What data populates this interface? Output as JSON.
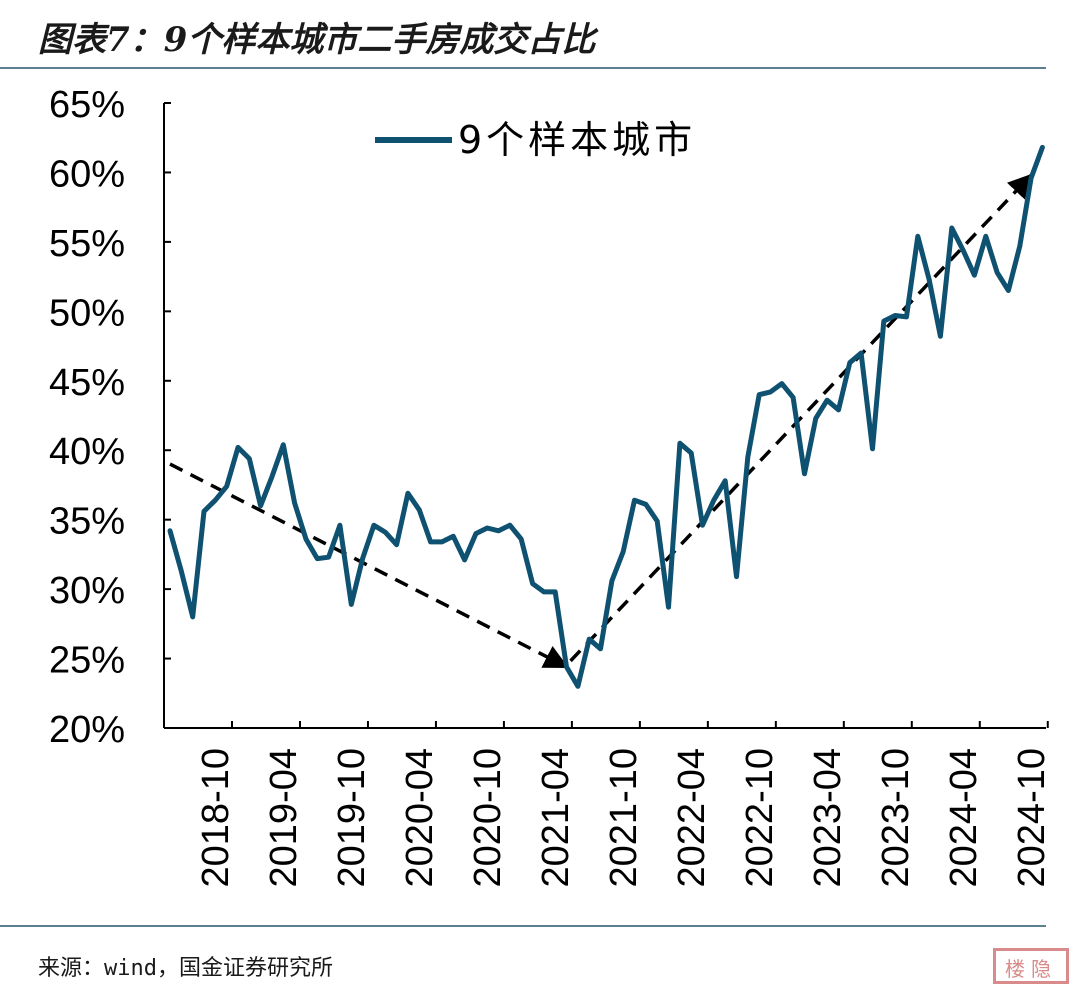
{
  "header": {
    "title": "图表7：9个样本城市二手房成交占比"
  },
  "footer": {
    "source": "来源：wind，国金证券研究所"
  },
  "watermark": "楼隐",
  "colors": {
    "series": "#0f5170",
    "trend": "#000000",
    "rule": "#5b7f8e"
  },
  "chart_data": {
    "type": "line",
    "title": "",
    "xlabel": "",
    "ylabel": "",
    "ylim": [
      0.2,
      0.65
    ],
    "yticks": [
      "20%",
      "25%",
      "30%",
      "35%",
      "40%",
      "45%",
      "50%",
      "55%",
      "60%",
      "65%"
    ],
    "xticks": [
      "2018-10",
      "2019-04",
      "2019-10",
      "2020-04",
      "2020-10",
      "2021-04",
      "2021-10",
      "2022-04",
      "2022-10",
      "2023-04",
      "2023-10",
      "2024-04",
      "2024-10"
    ],
    "legend": {
      "position": "top-center",
      "entries": [
        "9个样本城市"
      ]
    },
    "grid": false,
    "series": [
      {
        "name": "9个样本城市",
        "x": [
          "2018-10",
          "2018-11",
          "2018-12",
          "2019-01",
          "2019-02",
          "2019-03",
          "2019-04",
          "2019-05",
          "2019-06",
          "2019-07",
          "2019-08",
          "2019-09",
          "2019-10",
          "2019-11",
          "2019-12",
          "2020-01",
          "2020-02",
          "2020-03",
          "2020-04",
          "2020-05",
          "2020-06",
          "2020-07",
          "2020-08",
          "2020-09",
          "2020-10",
          "2020-11",
          "2020-12",
          "2021-01",
          "2021-02",
          "2021-03",
          "2021-04",
          "2021-05",
          "2021-06",
          "2021-07",
          "2021-08",
          "2021-09",
          "2021-10",
          "2021-11",
          "2021-12",
          "2022-01",
          "2022-02",
          "2022-03",
          "2022-04",
          "2022-05",
          "2022-06",
          "2022-07",
          "2022-08",
          "2022-09",
          "2022-10",
          "2022-11",
          "2022-12",
          "2023-01",
          "2023-02",
          "2023-03",
          "2023-04",
          "2023-05",
          "2023-06",
          "2023-07",
          "2023-08",
          "2023-09",
          "2023-10",
          "2023-11",
          "2023-12",
          "2024-01",
          "2024-02",
          "2024-03",
          "2024-04",
          "2024-05",
          "2024-06",
          "2024-07",
          "2024-08",
          "2024-09",
          "2024-10",
          "2024-11",
          "2024-12",
          "2025-01",
          "2025-02",
          "2025-03"
        ],
        "values": [
          0.342,
          0.313,
          0.28,
          0.356,
          0.364,
          0.374,
          0.402,
          0.394,
          0.36,
          0.381,
          0.404,
          0.362,
          0.336,
          0.322,
          0.323,
          0.346,
          0.289,
          0.322,
          0.346,
          0.341,
          0.332,
          0.369,
          0.357,
          0.334,
          0.334,
          0.338,
          0.321,
          0.34,
          0.344,
          0.342,
          0.346,
          0.336,
          0.304,
          0.298,
          0.298,
          0.244,
          0.23,
          0.264,
          0.257,
          0.306,
          0.327,
          0.364,
          0.361,
          0.349,
          0.287,
          0.405,
          0.398,
          0.346,
          0.364,
          0.378,
          0.309,
          0.395,
          0.44,
          0.442,
          0.448,
          0.438,
          0.383,
          0.423,
          0.436,
          0.429,
          0.463,
          0.47,
          0.401,
          0.493,
          0.497,
          0.496,
          0.554,
          0.523,
          0.482,
          0.56,
          0.544,
          0.526,
          0.554,
          0.528,
          0.515,
          0.547,
          0.596,
          0.618
        ]
      }
    ],
    "trend_lines": [
      {
        "from": [
          "2018-10",
          0.39
        ],
        "to": [
          "2021-09",
          0.244
        ]
      },
      {
        "from": [
          "2021-09",
          0.244
        ],
        "to": [
          "2025-02",
          0.598
        ]
      }
    ]
  }
}
